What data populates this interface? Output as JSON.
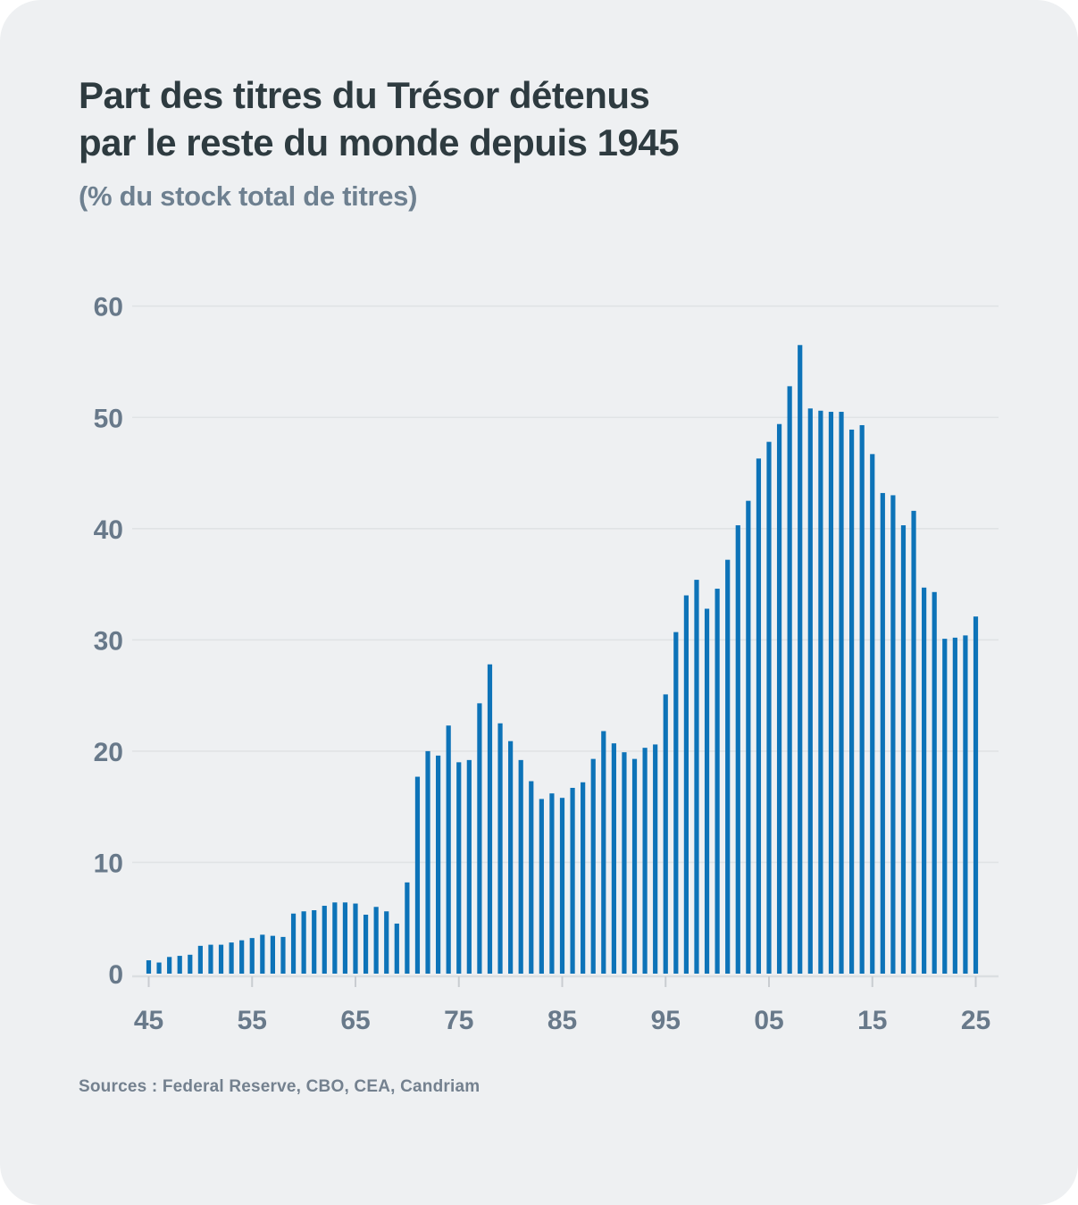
{
  "page": {
    "background": "#ffffff",
    "card_background": "#eef0f2"
  },
  "header": {
    "title_line1": "Part des titres du Trésor détenus",
    "title_line2": "par le reste du monde depuis 1945",
    "subtitle": "(% du stock total de titres)"
  },
  "footer": {
    "source": "Sources : Federal Reserve, CBO, CEA, Candriam"
  },
  "chart_data": {
    "type": "bar",
    "title": "Part des titres du Trésor détenus par le reste du monde depuis 1945",
    "subtitle": "(% du stock total de titres)",
    "xlabel": "",
    "ylabel": "% du stock total de titres",
    "grid": "horizontal",
    "legend": "none",
    "bar_color": "#0d73b8",
    "ylim": [
      0,
      62
    ],
    "ytick_values": [
      0,
      10,
      20,
      30,
      40,
      50,
      60
    ],
    "xtick_labels": [
      "45",
      "55",
      "65",
      "75",
      "85",
      "95",
      "05",
      "15",
      "25"
    ],
    "xtick_years": [
      1945,
      1955,
      1965,
      1975,
      1985,
      1995,
      2005,
      2015,
      2025
    ],
    "years": [
      1945,
      1946,
      1947,
      1948,
      1949,
      1950,
      1951,
      1952,
      1953,
      1954,
      1955,
      1956,
      1957,
      1958,
      1959,
      1960,
      1961,
      1962,
      1963,
      1964,
      1965,
      1966,
      1967,
      1968,
      1969,
      1970,
      1971,
      1972,
      1973,
      1974,
      1975,
      1976,
      1977,
      1978,
      1979,
      1980,
      1981,
      1982,
      1983,
      1984,
      1985,
      1986,
      1987,
      1988,
      1989,
      1990,
      1991,
      1992,
      1993,
      1994,
      1995,
      1996,
      1997,
      1998,
      1999,
      2000,
      2001,
      2002,
      2003,
      2004,
      2005,
      2006,
      2007,
      2008,
      2009,
      2010,
      2011,
      2012,
      2013,
      2014,
      2015,
      2016,
      2017,
      2018,
      2019,
      2020,
      2021,
      2022,
      2023,
      2024,
      2025
    ],
    "values": [
      1.2,
      1.0,
      1.5,
      1.6,
      1.7,
      2.5,
      2.6,
      2.6,
      2.8,
      3.0,
      3.2,
      3.5,
      3.4,
      3.3,
      5.4,
      5.6,
      5.7,
      6.1,
      6.4,
      6.4,
      6.3,
      5.3,
      6.0,
      5.6,
      4.5,
      8.2,
      17.7,
      20.0,
      19.6,
      22.3,
      19.0,
      19.2,
      24.3,
      27.8,
      22.5,
      20.9,
      19.2,
      17.3,
      15.7,
      16.2,
      15.8,
      16.7,
      17.2,
      19.3,
      21.8,
      20.7,
      19.9,
      19.3,
      20.3,
      20.6,
      25.1,
      30.7,
      34.0,
      35.4,
      32.8,
      34.6,
      37.2,
      40.3,
      42.5,
      46.3,
      47.8,
      49.4,
      52.8,
      56.5,
      50.8,
      50.6,
      50.5,
      50.5,
      48.9,
      49.3,
      46.7,
      43.2,
      43.0,
      40.3,
      41.6,
      34.7,
      34.3,
      30.1,
      30.2,
      30.4,
      32.1
    ]
  }
}
